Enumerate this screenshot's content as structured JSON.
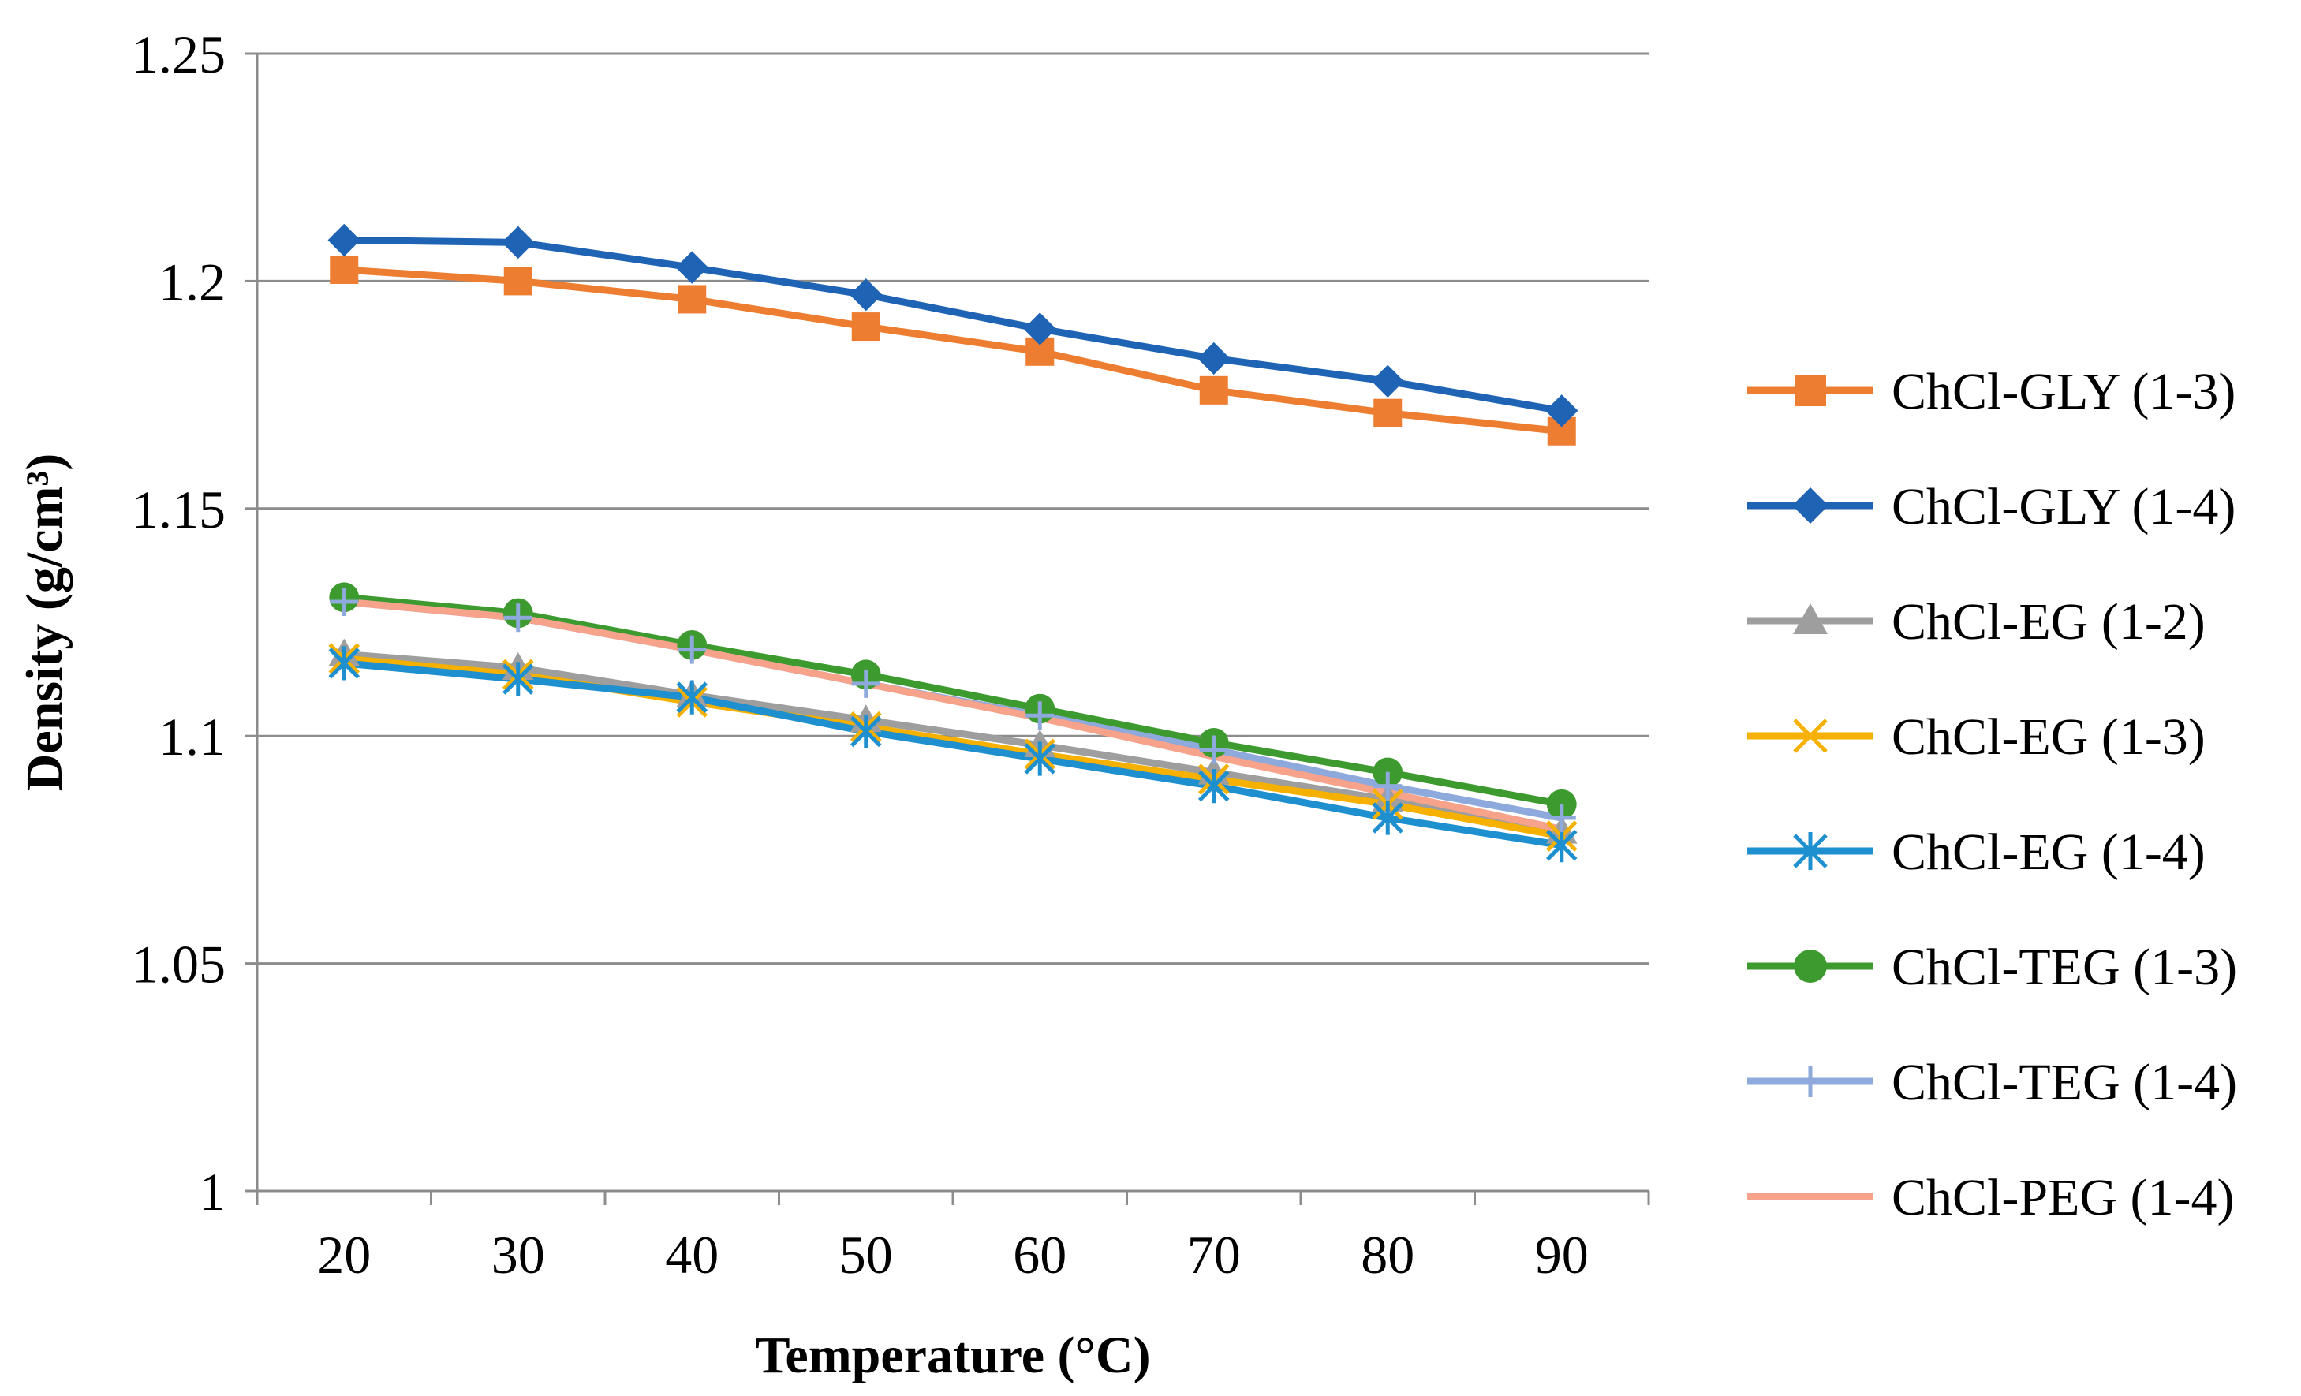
{
  "chart_data": {
    "type": "line",
    "title": "",
    "xlabel": "Temperature (°C)",
    "ylabel": "Density (g/cm³)",
    "x": [
      20,
      30,
      40,
      50,
      60,
      70,
      80,
      90
    ],
    "x_tick_labels": [
      "20",
      "30",
      "40",
      "50",
      "60",
      "70",
      "80",
      "90"
    ],
    "ylim": [
      1,
      1.25
    ],
    "y_ticks": [
      1,
      1.05,
      1.1,
      1.15,
      1.2,
      1.25
    ],
    "y_tick_labels": [
      "1",
      "1.05",
      "1.1",
      "1.15",
      "1.2",
      "1.25"
    ],
    "grid": "horizontal",
    "legend_position": "right",
    "series": [
      {
        "name": "ChCl-GLY (1-3)",
        "color": "#ED7D31",
        "marker": "square",
        "values": [
          1.2025,
          1.2,
          1.196,
          1.19,
          1.1845,
          1.176,
          1.171,
          1.167
        ]
      },
      {
        "name": "ChCl-GLY (1-4)",
        "color": "#1F63B5",
        "marker": "diamond",
        "values": [
          1.209,
          1.2085,
          1.203,
          1.197,
          1.1895,
          1.183,
          1.178,
          1.1715
        ]
      },
      {
        "name": "ChCl-EG (1-2)",
        "color": "#9E9E9E",
        "marker": "triangle",
        "values": [
          1.118,
          1.115,
          1.109,
          1.1035,
          1.098,
          1.092,
          1.086,
          1.079
        ]
      },
      {
        "name": "ChCl-EG (1-3)",
        "color": "#F5B000",
        "marker": "x",
        "values": [
          1.117,
          1.1135,
          1.1075,
          1.102,
          1.096,
          1.0905,
          1.085,
          1.078
        ]
      },
      {
        "name": "ChCl-EG (1-4)",
        "color": "#1E8FCF",
        "marker": "star",
        "values": [
          1.116,
          1.1125,
          1.1085,
          1.101,
          1.095,
          1.089,
          1.082,
          1.076
        ]
      },
      {
        "name": "ChCl-TEG (1-3)",
        "color": "#3C9A2E",
        "marker": "circle",
        "values": [
          1.1305,
          1.127,
          1.12,
          1.1135,
          1.106,
          1.0985,
          1.092,
          1.085
        ]
      },
      {
        "name": "ChCl-TEG (1-4)",
        "color": "#8EA9DB",
        "marker": "plus",
        "values": [
          1.1295,
          1.126,
          1.119,
          1.1115,
          1.1045,
          1.097,
          1.089,
          1.082
        ]
      },
      {
        "name": "ChCl-PEG (1-4)",
        "color": "#F7A28B",
        "marker": "none",
        "values": [
          1.1295,
          1.126,
          1.119,
          1.1115,
          1.104,
          1.0955,
          1.0875,
          1.0795
        ]
      }
    ]
  }
}
